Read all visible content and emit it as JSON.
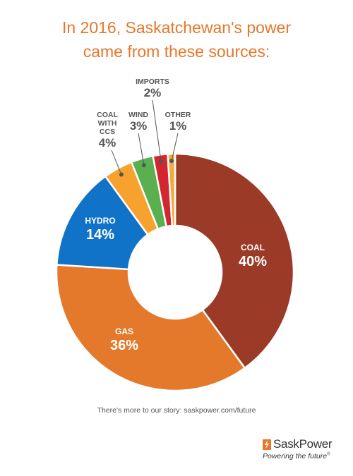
{
  "title": {
    "line1": "In 2016, Saskatchewan's power",
    "line2": "came from these sources:"
  },
  "chart_data": {
    "type": "pie",
    "style": "donut",
    "title": "In 2016, Saskatchewan's power came from these sources:",
    "unit": "%",
    "slices": [
      {
        "label": "COAL",
        "value": 40,
        "display": "40%",
        "color": "#9b3a27"
      },
      {
        "label": "GAS",
        "value": 36,
        "display": "36%",
        "color": "#e4782b"
      },
      {
        "label": "HYDRO",
        "value": 14,
        "display": "14%",
        "color": "#1173c7"
      },
      {
        "label": "COAL WITH CCS",
        "label_lines": [
          "COAL",
          "WITH",
          "CCS"
        ],
        "value": 4,
        "display": "4%",
        "color": "#f7a12e"
      },
      {
        "label": "WIND",
        "value": 3,
        "display": "3%",
        "color": "#5ab04e"
      },
      {
        "label": "IMPORTS",
        "value": 2,
        "display": "2%",
        "color": "#d22630"
      },
      {
        "label": "OTHER",
        "value": 1,
        "display": "1%",
        "color": "#f6a93c"
      }
    ]
  },
  "footer": {
    "text": "There's more to our story: saskpower.com/future"
  },
  "logo": {
    "name": "SaskPower",
    "tagline": "Powering the future",
    "mark": "®",
    "color": "#e8762b"
  }
}
